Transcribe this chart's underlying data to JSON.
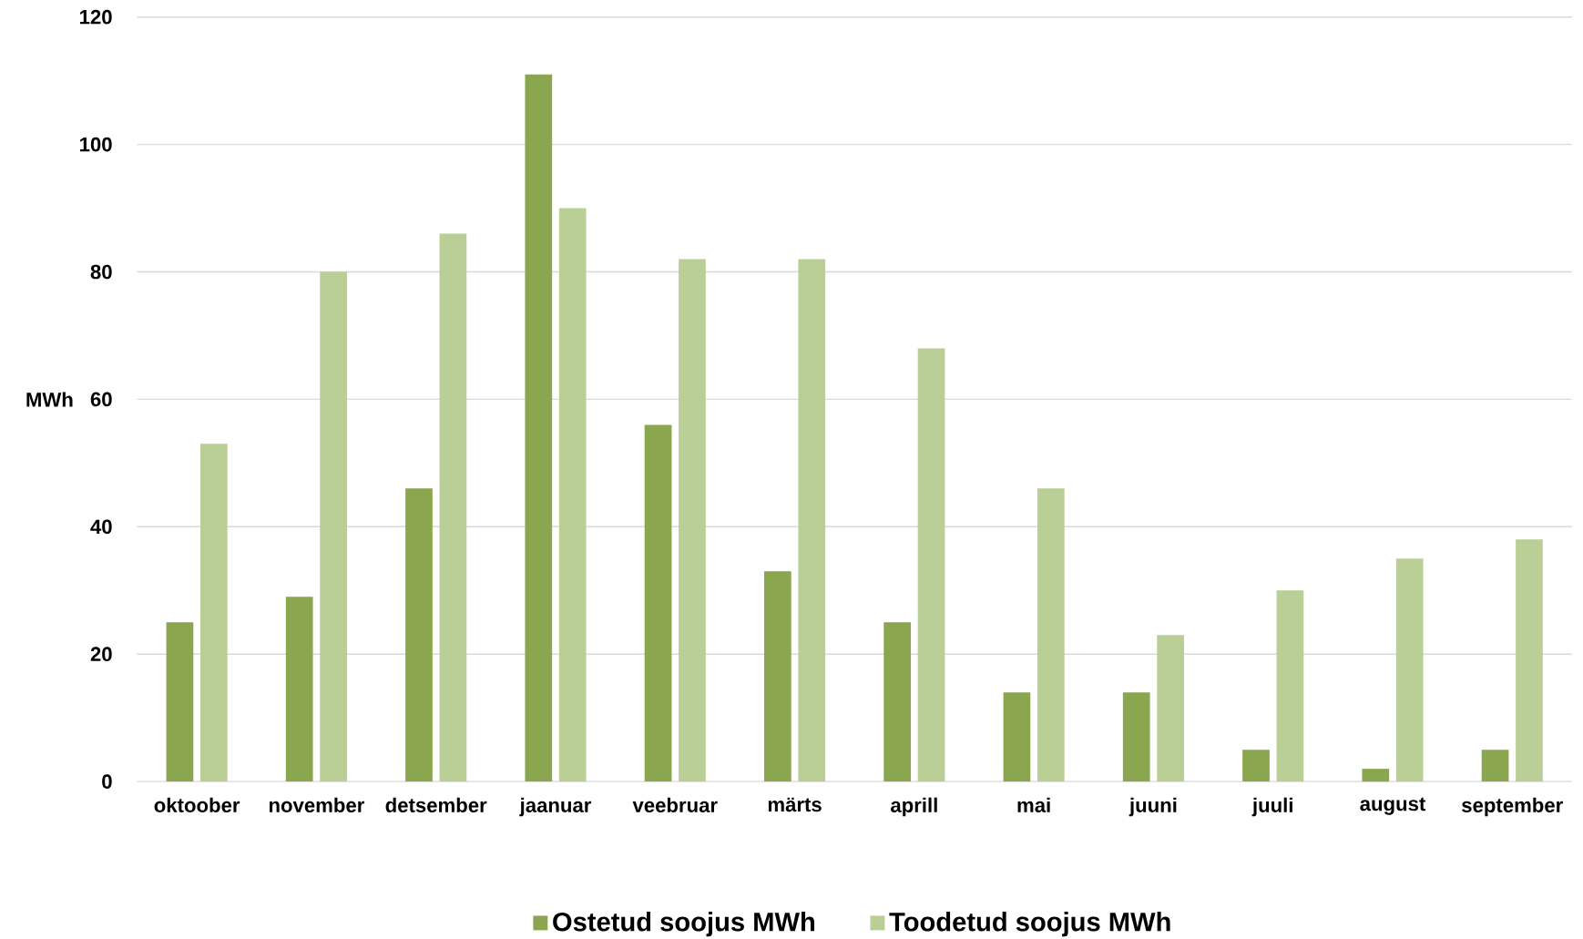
{
  "chart_data": {
    "type": "bar",
    "ylabel": "MWh",
    "categories": [
      "oktoober",
      "november",
      "detsember",
      "jaanuar",
      "veebruar",
      "märts",
      "aprill",
      "mai",
      "juuni",
      "juuli",
      "august",
      "september"
    ],
    "series": [
      {
        "name": "Ostetud soojus MWh",
        "color": "#8aa64f",
        "values": [
          25,
          29,
          46,
          111,
          56,
          33,
          25,
          14,
          14,
          5,
          2,
          5
        ]
      },
      {
        "name": "Toodetud soojus MWh",
        "color": "#b9cf96",
        "values": [
          53,
          80,
          86,
          90,
          82,
          82,
          68,
          46,
          23,
          30,
          35,
          38
        ]
      }
    ],
    "ylim": [
      0,
      120
    ],
    "yticks": [
      0,
      20,
      40,
      60,
      80,
      100,
      120
    ],
    "grid": "y",
    "legend": "bottom"
  }
}
